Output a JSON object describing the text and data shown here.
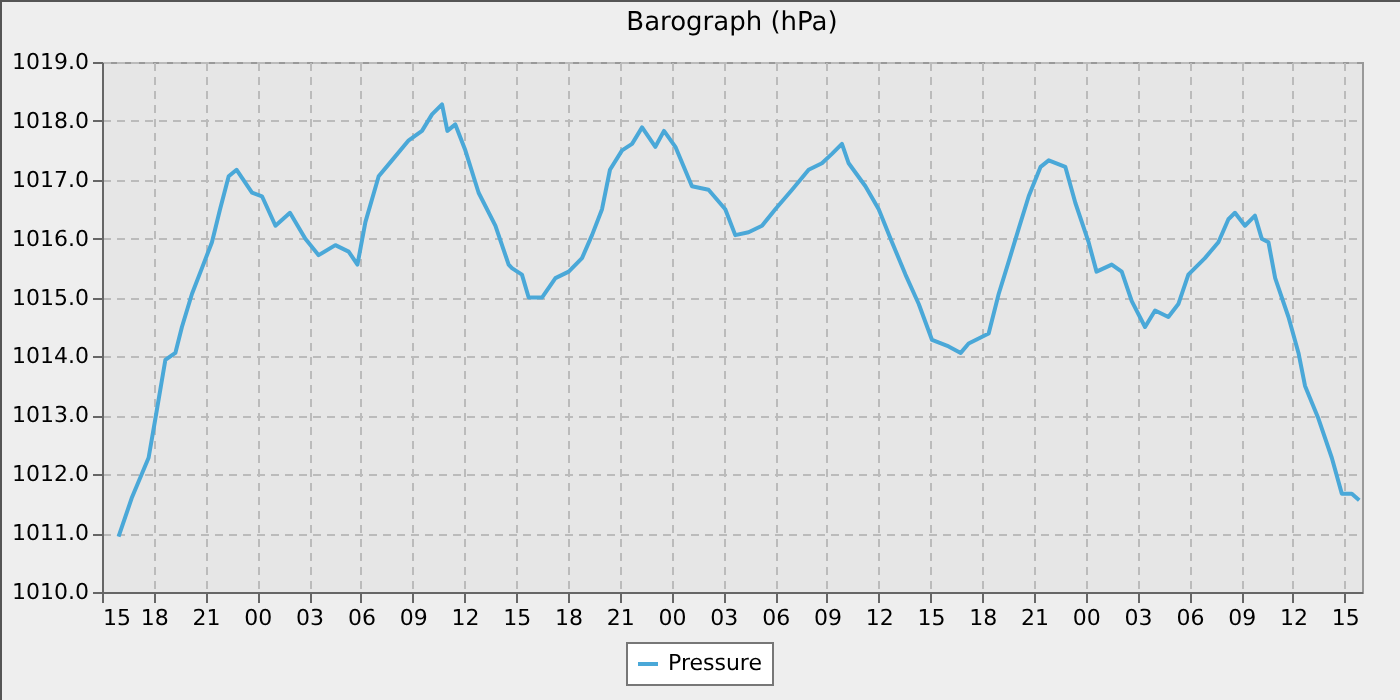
{
  "chart_data": {
    "type": "line",
    "title": "Barograph (hPa)",
    "x": [
      15.96,
      16.74,
      17.7,
      18.09,
      18.67,
      19.25,
      19.63,
      20.21,
      20.79,
      21.37,
      21.84,
      22.34,
      22.8,
      23.69,
      24.27,
      25.05,
      25.89,
      26.78,
      27.55,
      28.52,
      29.29,
      29.8,
      30.26,
      31.03,
      31.8,
      32.77,
      33.54,
      34.12,
      34.7,
      35.01,
      35.47,
      36.05,
      36.82,
      37.79,
      38.56,
      38.75,
      39.33,
      39.72,
      40.49,
      41.27,
      42.04,
      42.81,
      43.39,
      43.97,
      44.43,
      45.13,
      45.71,
      46.29,
      47.06,
      47.56,
      48.22,
      49.18,
      50.14,
      51.11,
      51.69,
      52.46,
      53.24,
      54.01,
      54.98,
      55.94,
      56.71,
      57.29,
      57.87,
      58.26,
      59.23,
      60.0,
      60.77,
      61.55,
      62.32,
      63.09,
      64.05,
      64.75,
      65.21,
      66.37,
      66.95,
      67.53,
      68.11,
      68.69,
      69.38,
      69.85,
      70.81,
      71.39,
      72.16,
      72.62,
      73.5,
      74.08,
      74.66,
      75.43,
      76.01,
      76.78,
      77.36,
      77.94,
      78.9,
      79.68,
      80.26,
      80.64,
      81.22,
      81.8,
      82.19,
      82.58,
      82.97,
      83.74,
      84.32,
      84.7,
      85.48,
      86.25,
      86.83,
      87.41,
      87.84
    ],
    "series": [
      {
        "name": "Pressure",
        "color": "#4aa8d8",
        "values": [
          1010.94,
          1011.61,
          1012.28,
          1012.94,
          1013.94,
          1014.06,
          1014.5,
          1015.06,
          1015.5,
          1015.94,
          1016.5,
          1017.06,
          1017.17,
          1016.78,
          1016.72,
          1016.22,
          1016.44,
          1016.0,
          1015.72,
          1015.89,
          1015.78,
          1015.56,
          1016.28,
          1017.06,
          1017.33,
          1017.67,
          1017.83,
          1018.11,
          1018.28,
          1017.83,
          1017.94,
          1017.5,
          1016.78,
          1016.22,
          1015.56,
          1015.5,
          1015.39,
          1015.0,
          1015.0,
          1015.33,
          1015.44,
          1015.67,
          1016.06,
          1016.5,
          1017.17,
          1017.5,
          1017.61,
          1017.89,
          1017.56,
          1017.83,
          1017.56,
          1016.89,
          1016.83,
          1016.5,
          1016.06,
          1016.11,
          1016.22,
          1016.5,
          1016.83,
          1017.17,
          1017.28,
          1017.44,
          1017.61,
          1017.28,
          1016.89,
          1016.5,
          1015.94,
          1015.39,
          1014.89,
          1014.28,
          1014.17,
          1014.06,
          1014.22,
          1014.39,
          1015.06,
          1015.61,
          1016.17,
          1016.72,
          1017.22,
          1017.33,
          1017.22,
          1016.61,
          1015.94,
          1015.44,
          1015.56,
          1015.44,
          1014.94,
          1014.5,
          1014.78,
          1014.67,
          1014.89,
          1015.39,
          1015.67,
          1015.94,
          1016.33,
          1016.44,
          1016.22,
          1016.39,
          1016.0,
          1015.94,
          1015.33,
          1014.67,
          1014.06,
          1013.5,
          1012.94,
          1012.28,
          1011.67,
          1011.67,
          1011.56
        ]
      }
    ],
    "xlim": [
      15,
      88
    ],
    "xticks": [
      {
        "value": 15,
        "label": "15"
      },
      {
        "value": 18,
        "label": "18"
      },
      {
        "value": 21,
        "label": "21"
      },
      {
        "value": 24,
        "label": "00"
      },
      {
        "value": 27,
        "label": "03"
      },
      {
        "value": 30,
        "label": "06"
      },
      {
        "value": 33,
        "label": "09"
      },
      {
        "value": 36,
        "label": "12"
      },
      {
        "value": 39,
        "label": "15"
      },
      {
        "value": 42,
        "label": "18"
      },
      {
        "value": 45,
        "label": "21"
      },
      {
        "value": 48,
        "label": "00"
      },
      {
        "value": 51,
        "label": "03"
      },
      {
        "value": 54,
        "label": "06"
      },
      {
        "value": 57,
        "label": "09"
      },
      {
        "value": 60,
        "label": "12"
      },
      {
        "value": 63,
        "label": "15"
      },
      {
        "value": 66,
        "label": "18"
      },
      {
        "value": 69,
        "label": "21"
      },
      {
        "value": 72,
        "label": "00"
      },
      {
        "value": 75,
        "label": "03"
      },
      {
        "value": 78,
        "label": "06"
      },
      {
        "value": 81,
        "label": "09"
      },
      {
        "value": 84,
        "label": "12"
      },
      {
        "value": 87,
        "label": "15"
      }
    ],
    "ylim": [
      1010,
      1019
    ],
    "yticks": [
      {
        "value": 1010,
        "label": "1010.0"
      },
      {
        "value": 1011,
        "label": "1011.0"
      },
      {
        "value": 1012,
        "label": "1012.0"
      },
      {
        "value": 1013,
        "label": "1013.0"
      },
      {
        "value": 1014,
        "label": "1014.0"
      },
      {
        "value": 1015,
        "label": "1015.0"
      },
      {
        "value": 1016,
        "label": "1016.0"
      },
      {
        "value": 1017,
        "label": "1017.0"
      },
      {
        "value": 1018,
        "label": "1018.0"
      },
      {
        "value": 1019,
        "label": "1019.0"
      }
    ],
    "grid": true,
    "legend": "bottom",
    "marker": "none",
    "line_style": "solid"
  }
}
